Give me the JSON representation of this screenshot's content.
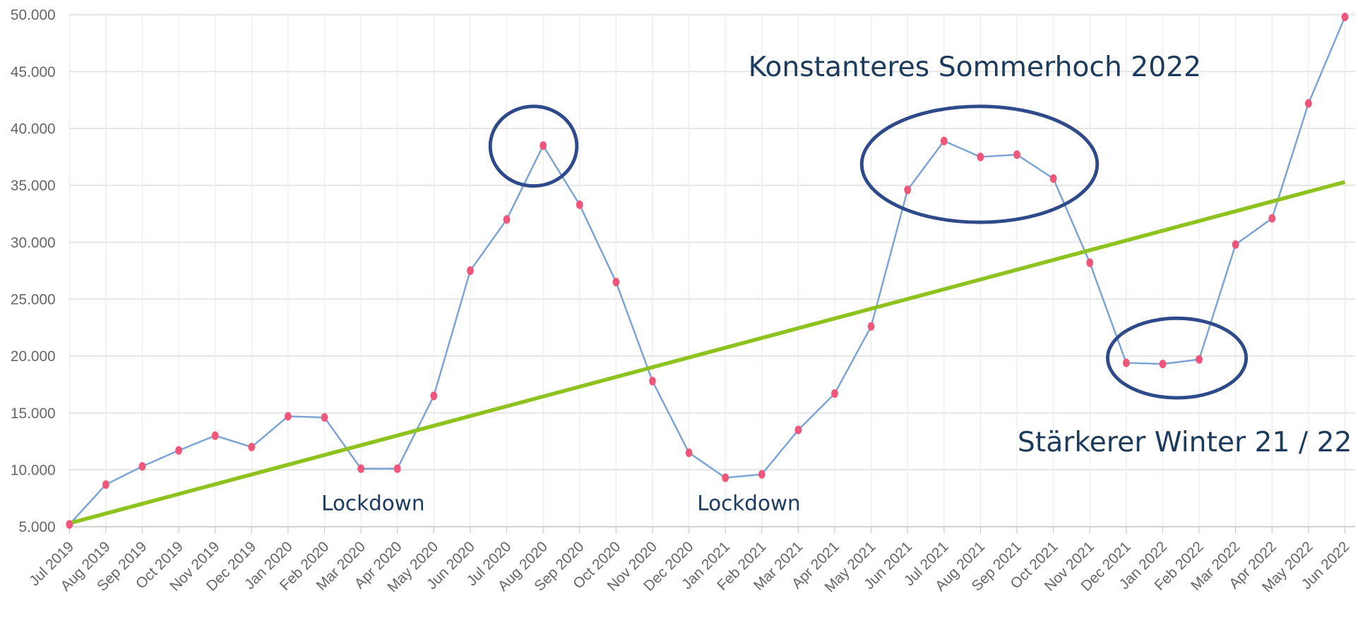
{
  "chart_data": {
    "type": "line",
    "categories": [
      "Jul 2019",
      "Aug 2019",
      "Sep 2019",
      "Oct 2019",
      "Nov 2019",
      "Dec 2019",
      "Jan 2020",
      "Feb 2020",
      "Mar 2020",
      "Apr 2020",
      "May 2020",
      "Jun 2020",
      "Jul 2020",
      "Aug 2020",
      "Sep 2020",
      "Oct 2020",
      "Nov 2020",
      "Dec 2020",
      "Jan 2021",
      "Feb 2021",
      "Mar 2021",
      "Apr 2021",
      "May 2021",
      "Jun 2021",
      "Jul 2021",
      "Aug 2021",
      "Sep 2021",
      "Oct 2021",
      "Nov 2021",
      "Dec 2021",
      "Jan 2022",
      "Feb 2022",
      "Mar 2022",
      "Apr 2022",
      "May 2022",
      "Jun 2022"
    ],
    "values": [
      5200,
      8700,
      10300,
      11700,
      13000,
      12000,
      14700,
      14600,
      10100,
      10100,
      16500,
      27500,
      32000,
      38500,
      33300,
      26500,
      17800,
      11500,
      9300,
      9600,
      13500,
      16700,
      22600,
      34600,
      38900,
      37500,
      37700,
      35600,
      28200,
      19400,
      19300,
      19700,
      29800,
      32100,
      42200,
      49800
    ],
    "color": "#7ba3d4",
    "marker_color": "#f0557a",
    "trendline": {
      "color": "#8dc21f",
      "start": 5300,
      "end": 35300
    },
    "ylim": [
      5000,
      50000
    ],
    "yticks": [
      {
        "value": 5000,
        "label": "5.000"
      },
      {
        "value": 10000,
        "label": "10.000"
      },
      {
        "value": 15000,
        "label": "15.000"
      },
      {
        "value": 20000,
        "label": "20.000"
      },
      {
        "value": 25000,
        "label": "25.000"
      },
      {
        "value": 30000,
        "label": "30.000"
      },
      {
        "value": 35000,
        "label": "35.000"
      },
      {
        "value": 40000,
        "label": "40.000"
      },
      {
        "value": 45000,
        "label": "45.000"
      },
      {
        "value": 50000,
        "label": "50.000"
      }
    ],
    "grid": true,
    "annotations": [
      "Konstanteres Sommerhoch 2022",
      "Stärkerer Winter 21 / 22",
      "Lockdown",
      "Lockdown"
    ]
  }
}
